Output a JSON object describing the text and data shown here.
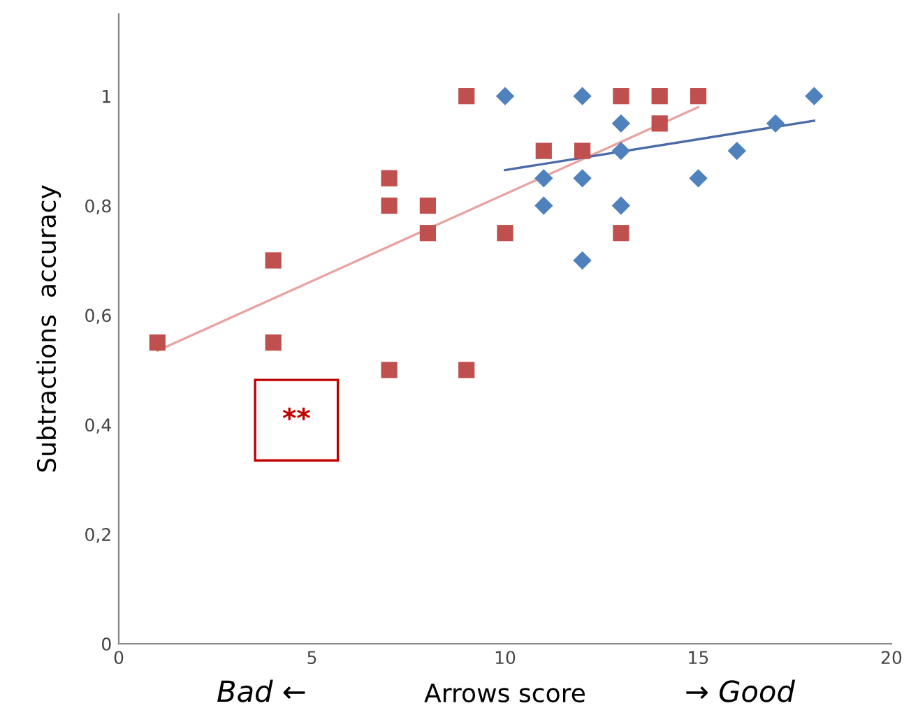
{
  "chart_data": {
    "type": "scatter",
    "xlabel": "Arrows score",
    "ylabel": "Subtractions  accuracy",
    "xlim": [
      0,
      20
    ],
    "ylim": [
      0,
      1.15
    ],
    "xticks": [
      0,
      5,
      10,
      15,
      20
    ],
    "yticks": [
      0,
      {
        "value": 0.2,
        "label": "0,2"
      },
      {
        "value": 0.4,
        "label": "0,4"
      },
      {
        "value": 0.6,
        "label": "0,6"
      },
      {
        "value": 0.8,
        "label": "0,8"
      },
      1
    ],
    "grid": false,
    "series": [
      {
        "marker": "square",
        "color": "#c0504d",
        "x": [
          1,
          4,
          4,
          7,
          7,
          7,
          8,
          8,
          9,
          9,
          10,
          11,
          12,
          13,
          13,
          14,
          14,
          15
        ],
        "values": [
          0.55,
          0.7,
          0.55,
          0.85,
          0.8,
          0.5,
          0.8,
          0.75,
          1,
          0.5,
          0.75,
          0.9,
          0.9,
          1,
          0.75,
          1,
          0.95,
          1
        ]
      },
      {
        "marker": "diamond",
        "color": "#4f81bd",
        "x": [
          10,
          11,
          11,
          12,
          12,
          12,
          13,
          13,
          13,
          15,
          16,
          17,
          18
        ],
        "values": [
          1,
          0.85,
          0.8,
          1,
          0.85,
          0.7,
          0.95,
          0.9,
          0.8,
          0.85,
          0.9,
          0.95,
          1
        ]
      },
      {
        "type": "line",
        "color": "#e8a3a1",
        "x": [
          1,
          15
        ],
        "values": [
          0.535,
          0.98
        ]
      },
      {
        "type": "line",
        "color": "#4a6aa8",
        "x": [
          10,
          18
        ],
        "values": [
          0.865,
          0.955
        ]
      }
    ],
    "annotations": [
      "**",
      "Bad ←",
      "→ Good"
    ]
  }
}
